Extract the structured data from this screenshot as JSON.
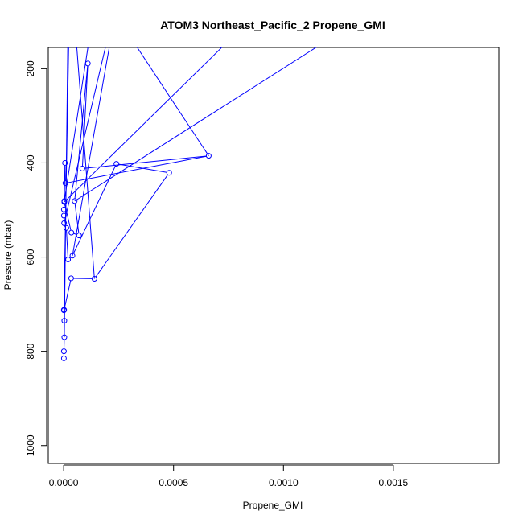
{
  "chart_data": {
    "type": "line",
    "title": "ATOM3 Northeast_Pacific_2 Propene_GMI",
    "xlabel": "Propene_GMI",
    "ylabel": "Pressure (mbar)",
    "xlim": [
      -7e-05,
      0.00198
    ],
    "ylim": [
      1038,
      155
    ],
    "y_reversed": true,
    "x_ticks": [
      0.0,
      0.0005,
      0.001,
      0.0015
    ],
    "x_tick_labels": [
      "0.0000",
      "0.0005",
      "0.0010",
      "0.0015"
    ],
    "y_ticks": [
      200,
      400,
      600,
      800,
      1000
    ],
    "y_tick_labels": [
      "200",
      "400",
      "600",
      "800",
      "1000"
    ],
    "grid": false,
    "series_color": "#0000ff",
    "marker": "open-circle",
    "series": [
      {
        "points": [
          [
            1e-06,
            815
          ],
          [
            1e-06,
            800
          ],
          [
            3e-06,
            770
          ],
          [
            3e-06,
            735
          ],
          [
            1e-06,
            712
          ],
          [
            1e-06,
            713
          ],
          [
            2e-06,
            712
          ],
          [
            3.4e-05,
            645
          ],
          [
            0.00014,
            646
          ],
          [
            0.00048,
            421
          ],
          [
            0.00024,
            402
          ],
          [
            4e-05,
            597
          ],
          [
            2e-05,
            605
          ],
          [
            1.2e-05,
            538
          ],
          [
            2e-06,
            528
          ],
          [
            1e-06,
            512
          ],
          [
            1e-06,
            499
          ],
          [
            3e-06,
            483
          ],
          [
            3.5e-05,
            548
          ],
          [
            7e-05,
            554
          ],
          [
            5e-05,
            481
          ],
          [
            0.00011,
            189
          ],
          [
            8.5e-05,
            412
          ],
          [
            0.00066,
            385
          ],
          [
            8e-06,
            443
          ],
          [
            6e-06,
            400
          ],
          [
            3e-06,
            481
          ]
        ],
        "offscale_x": [
          2.5e-05,
          5e-05,
          0.00023,
          0.00022,
          0.00085,
          0.00135,
          0.00025,
          0.00013,
          2e-05
        ]
      }
    ]
  }
}
